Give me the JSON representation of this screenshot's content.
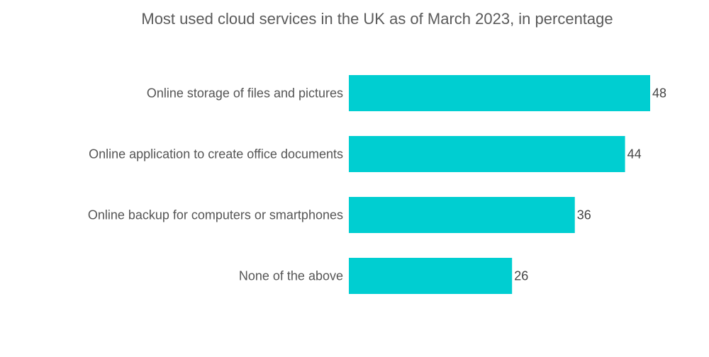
{
  "chart_data": {
    "type": "bar",
    "orientation": "horizontal",
    "title": "Most used cloud services in the UK as of March 2023, in percentage",
    "categories": [
      "Online storage of files and pictures",
      "Online application to create office documents",
      "Online backup for computers or smartphones",
      "None of the above"
    ],
    "values": [
      48,
      44,
      36,
      26
    ],
    "xlabel": "",
    "ylabel": "",
    "xlim": [
      0,
      48
    ],
    "grid": false,
    "legend": "none",
    "bar_color": "#00CED1"
  }
}
